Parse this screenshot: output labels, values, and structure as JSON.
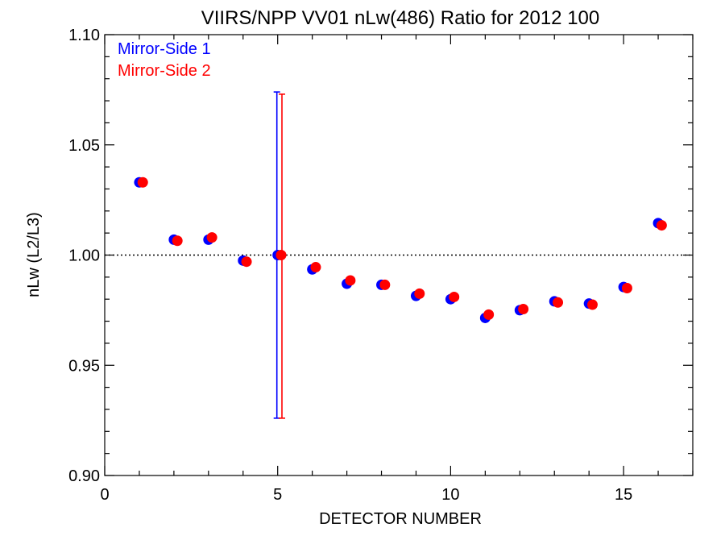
{
  "chart_data": {
    "type": "scatter",
    "title": "VIIRS/NPP VV01 nLw(486) Ratio for 2012 100",
    "xlabel": "DETECTOR NUMBER",
    "ylabel": "nLw (L2/L3)",
    "xlim": [
      0,
      17
    ],
    "ylim": [
      0.9,
      1.1
    ],
    "xticks": [
      0,
      5,
      10,
      15
    ],
    "xtick_labels": [
      "0",
      "5",
      "10",
      "15"
    ],
    "yticks": [
      0.9,
      0.95,
      1.0,
      1.05,
      1.1
    ],
    "ytick_labels": [
      "0.90",
      "0.95",
      "1.00",
      "1.05",
      "1.10"
    ],
    "reference_line": {
      "y": 1.0,
      "style": "dotted"
    },
    "legend": {
      "placement": "top-left"
    },
    "series": [
      {
        "name": "Mirror-Side 1",
        "color": "#0000ff",
        "x": [
          1,
          2,
          3,
          4,
          5,
          6,
          7,
          8,
          9,
          10,
          11,
          12,
          13,
          14,
          15,
          16
        ],
        "y": [
          1.033,
          1.007,
          1.007,
          0.9975,
          1.0,
          0.9935,
          0.987,
          0.9865,
          0.9815,
          0.98,
          0.9715,
          0.975,
          0.979,
          0.978,
          0.9855,
          1.0145
        ],
        "error_bars": [
          {
            "x": 5,
            "low": 0.926,
            "high": 1.074
          }
        ]
      },
      {
        "name": "Mirror-Side 2",
        "color": "#ff0000",
        "x": [
          1.1,
          2.1,
          3.1,
          4.1,
          5.1,
          6.1,
          7.1,
          8.1,
          9.1,
          10.1,
          11.1,
          12.1,
          13.1,
          14.1,
          15.1,
          16.1
        ],
        "y": [
          1.033,
          1.0065,
          1.008,
          0.997,
          1.0,
          0.9945,
          0.9885,
          0.9865,
          0.9825,
          0.981,
          0.973,
          0.9755,
          0.9785,
          0.9775,
          0.985,
          1.0135
        ],
        "error_bars": [
          {
            "x": 5.1,
            "low": 0.926,
            "high": 1.073
          }
        ]
      }
    ]
  }
}
